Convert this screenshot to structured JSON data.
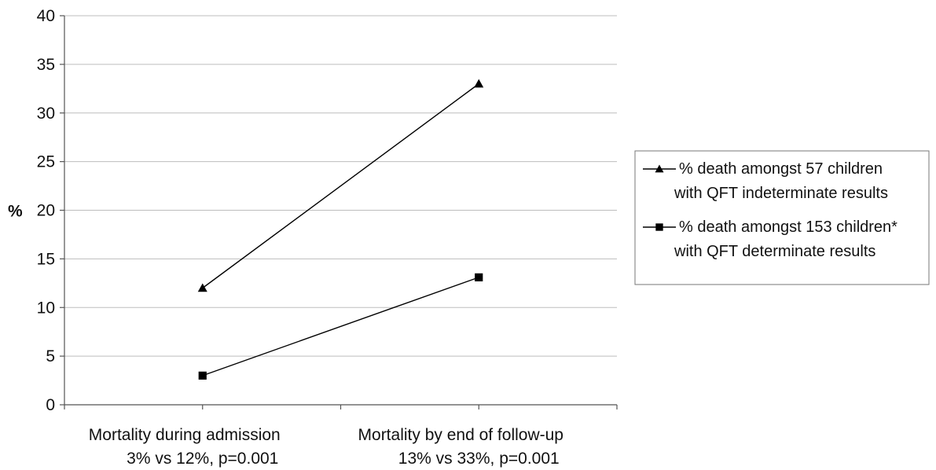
{
  "chart_data": {
    "type": "line",
    "title": "",
    "xlabel": "",
    "ylabel": "%",
    "ylim": [
      0,
      40
    ],
    "ytick_step": 5,
    "grid": true,
    "legend_position": "right",
    "categories": [
      [
        "Mortality during admission",
        "3% vs 12%, p=0.001"
      ],
      [
        "Mortality by end of follow-up",
        "13% vs 33%, p=0.001"
      ]
    ],
    "series": [
      {
        "name": [
          "% death amongst 57 children",
          "with QFT indeterminate results"
        ],
        "marker": "triangle",
        "values": [
          12,
          33
        ]
      },
      {
        "name": [
          "% death amongst 153 children*",
          "with QFT determinate results"
        ],
        "marker": "square",
        "values": [
          3,
          13.1
        ]
      }
    ]
  }
}
